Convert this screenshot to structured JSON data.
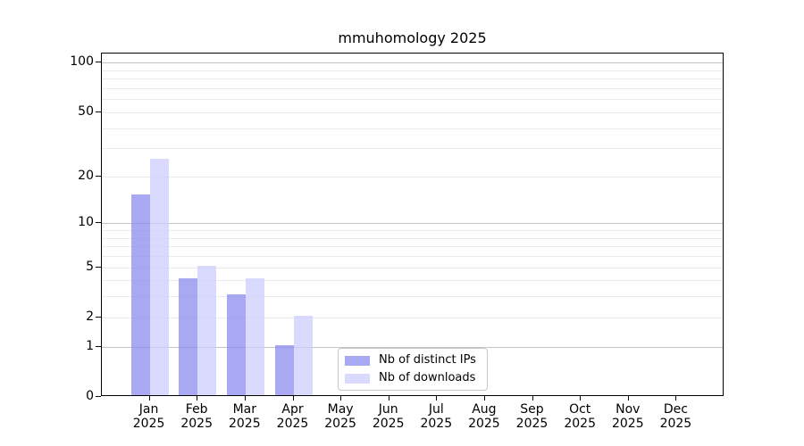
{
  "title": "mmuhomology 2025",
  "chart_data": {
    "type": "bar",
    "title": "mmuhomology 2025",
    "x_months": [
      "Jan",
      "Feb",
      "Mar",
      "Apr",
      "May",
      "Jun",
      "Jul",
      "Aug",
      "Sep",
      "Oct",
      "Nov",
      "Dec"
    ],
    "x_year": "2025",
    "series": [
      {
        "name": "Nb of distinct IPs",
        "color": "rgba(136,136,238,0.72)",
        "color_hex": "#a9a9f2",
        "values": [
          15,
          4,
          3,
          1,
          0,
          0,
          0,
          0,
          0,
          0,
          0,
          0
        ]
      },
      {
        "name": "Nb of downloads",
        "color": "rgba(204,204,255,0.72)",
        "color_hex": "#d9d9f8",
        "values": [
          25,
          5,
          4,
          2,
          0,
          0,
          0,
          0,
          0,
          0,
          0,
          0
        ]
      }
    ],
    "xlabel": "",
    "ylabel": "",
    "yscale": "log1p",
    "ylim": [
      0,
      113.6
    ],
    "ytick_labels": [
      0,
      1,
      2,
      5,
      10,
      20,
      50,
      100
    ],
    "grid_major": [
      1,
      10,
      100
    ],
    "grid_minor": [
      2,
      3,
      4,
      5,
      6,
      7,
      8,
      9,
      20,
      30,
      40,
      50,
      60,
      70,
      80,
      90
    ],
    "grid": "horizontal only, minor and major",
    "legend_position": "inside lower center",
    "legend_entries": [
      "Nb of distinct IPs",
      "Nb of downloads"
    ]
  }
}
